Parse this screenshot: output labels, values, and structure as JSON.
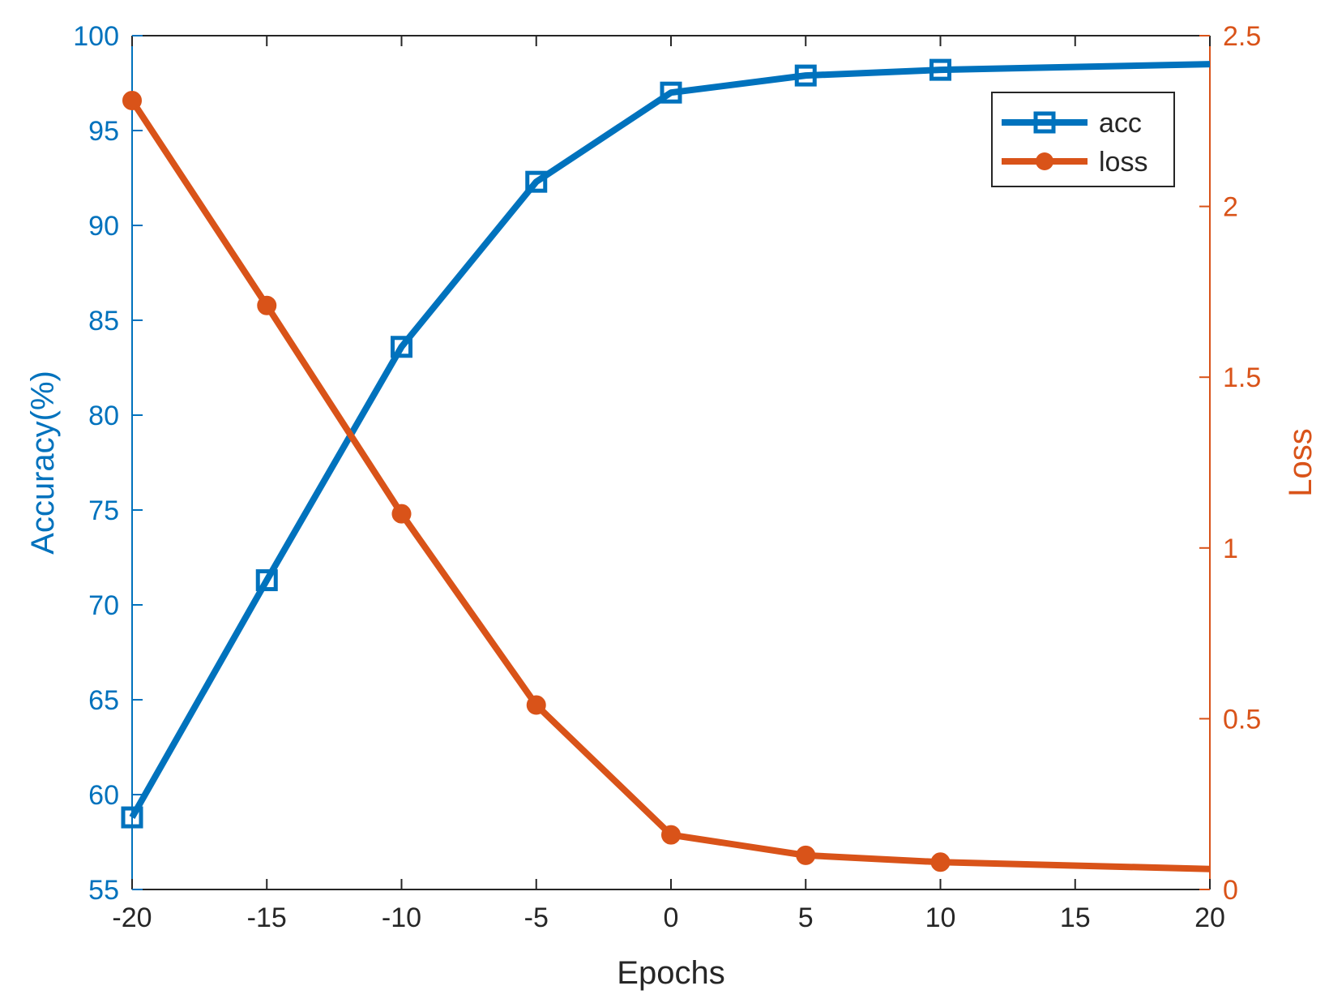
{
  "chart_data": {
    "type": "line",
    "title": "",
    "xlabel": "Epochs",
    "ylabel_left": "Accuracy(%)",
    "ylabel_right": "Loss",
    "xlim": [
      -20,
      20
    ],
    "ylim_left": [
      55,
      100
    ],
    "ylim_right": [
      0,
      2.5
    ],
    "xticks": [
      -20,
      -15,
      -10,
      -5,
      0,
      5,
      10,
      15,
      20
    ],
    "yticks_left": [
      55,
      60,
      65,
      70,
      75,
      80,
      85,
      90,
      95,
      100
    ],
    "yticks_right": [
      0,
      0.5,
      1,
      1.5,
      2,
      2.5
    ],
    "grid": false,
    "legend_position": "top-right",
    "colors": {
      "acc": "#0072BD",
      "loss": "#D95319",
      "axes": "#262626"
    },
    "series": [
      {
        "name": "acc",
        "axis": "left",
        "marker": "square",
        "x": [
          -20,
          -15,
          -10,
          -5,
          0,
          5,
          10,
          20
        ],
        "y": [
          58.8,
          71.3,
          83.6,
          92.3,
          97.0,
          97.9,
          98.2,
          98.5
        ],
        "marker_x": [
          -20,
          -15,
          -10,
          -5,
          0,
          5,
          10
        ]
      },
      {
        "name": "loss",
        "axis": "right",
        "marker": "circle",
        "x": [
          -20,
          -15,
          -10,
          -5,
          0,
          5,
          10,
          20
        ],
        "y": [
          2.31,
          1.71,
          1.1,
          0.54,
          0.16,
          0.1,
          0.08,
          0.06
        ],
        "marker_x": [
          -20,
          -15,
          -10,
          -5,
          0,
          5,
          10
        ]
      }
    ]
  }
}
